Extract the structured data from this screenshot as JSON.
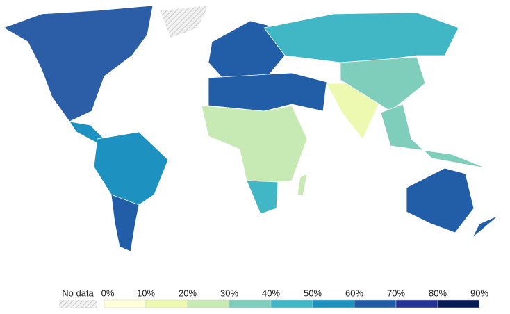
{
  "legend": {
    "no_data": "No data",
    "ticks": [
      "0%",
      "10%",
      "20%",
      "30%",
      "40%",
      "50%",
      "60%",
      "70%",
      "80%",
      "90%"
    ],
    "colors": [
      "#ffffd9",
      "#edf8b1",
      "#c7e9b4",
      "#7fcdbb",
      "#41b6c4",
      "#1d91c0",
      "#225ea8",
      "#253494",
      "#081d58"
    ]
  }
}
